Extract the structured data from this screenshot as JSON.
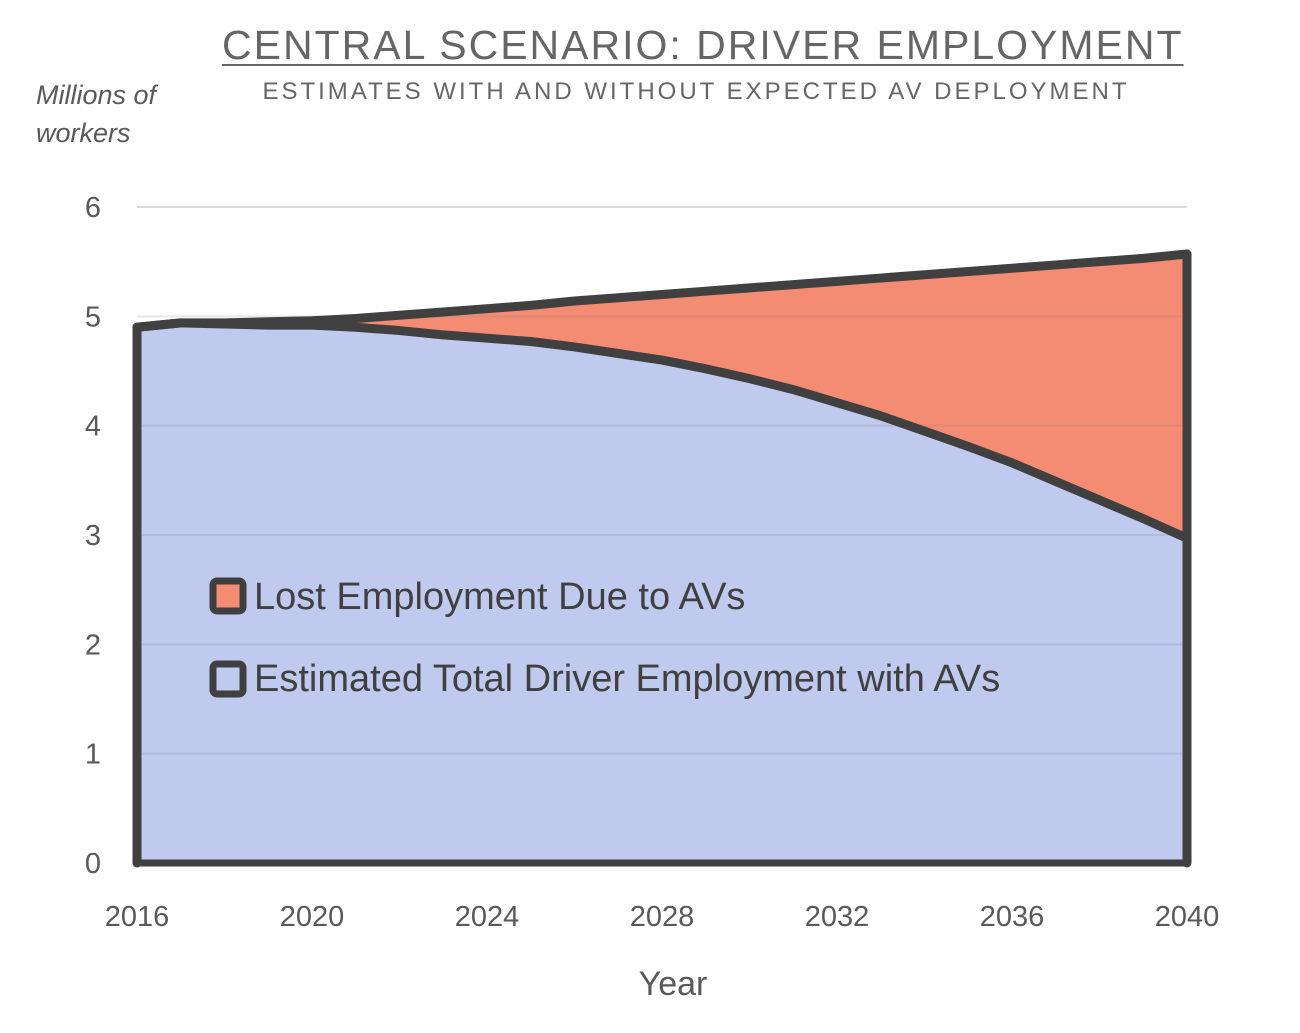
{
  "chart_data": {
    "type": "area",
    "stacked": true,
    "title": "CENTRAL SCENARIO: DRIVER EMPLOYMENT",
    "subtitle": "ESTIMATES WITH AND WITHOUT EXPECTED AV DEPLOYMENT",
    "ylabel": "Millions of workers",
    "xlabel": "Year",
    "xlim": [
      2016,
      2040
    ],
    "ylim": [
      0,
      6
    ],
    "x_ticks": [
      "2016",
      "2020",
      "2024",
      "2028",
      "2032",
      "2036",
      "2040"
    ],
    "y_ticks": [
      "0",
      "1",
      "2",
      "3",
      "4",
      "5",
      "6"
    ],
    "grid": true,
    "legend_position": "center-left",
    "x": [
      2016,
      2017,
      2018,
      2019,
      2020,
      2021,
      2022,
      2023,
      2024,
      2025,
      2026,
      2027,
      2028,
      2029,
      2030,
      2031,
      2032,
      2033,
      2034,
      2035,
      2036,
      2037,
      2038,
      2039,
      2040
    ],
    "series": [
      {
        "name": "Estimated Total Driver Employment with AVs",
        "color": "#c0c9ee",
        "values": [
          4.9,
          4.94,
          4.93,
          4.92,
          4.92,
          4.9,
          4.87,
          4.83,
          4.8,
          4.77,
          4.72,
          4.66,
          4.6,
          4.52,
          4.43,
          4.33,
          4.21,
          4.09,
          3.95,
          3.81,
          3.66,
          3.49,
          3.32,
          3.15,
          2.97
        ]
      },
      {
        "name": "Lost Employment Due to AVs",
        "color": "#f48c74",
        "values": [
          0.0,
          0.0,
          0.01,
          0.03,
          0.04,
          0.08,
          0.14,
          0.21,
          0.27,
          0.33,
          0.42,
          0.51,
          0.6,
          0.71,
          0.83,
          0.96,
          1.11,
          1.26,
          1.43,
          1.6,
          1.78,
          1.98,
          2.18,
          2.38,
          2.6
        ]
      }
    ],
    "total_line_color": "#404040"
  }
}
